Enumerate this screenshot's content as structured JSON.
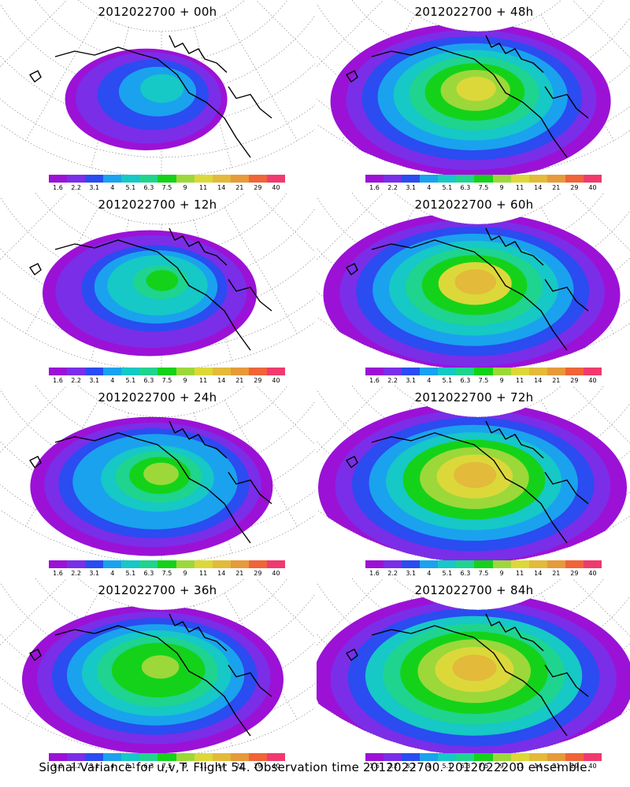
{
  "panels": [
    {
      "title": "2012022700 + 00h",
      "lead_hours": 0,
      "variance_intensity": 0.28
    },
    {
      "title": "2012022700 + 48h",
      "lead_hours": 48,
      "variance_intensity": 0.78
    },
    {
      "title": "2012022700 + 12h",
      "lead_hours": 12,
      "variance_intensity": 0.5
    },
    {
      "title": "2012022700 + 60h",
      "lead_hours": 60,
      "variance_intensity": 0.85
    },
    {
      "title": "2012022700 + 24h",
      "lead_hours": 24,
      "variance_intensity": 0.62
    },
    {
      "title": "2012022700 + 72h",
      "lead_hours": 72,
      "variance_intensity": 0.9
    },
    {
      "title": "2012022700 + 36h",
      "lead_hours": 36,
      "variance_intensity": 0.7
    },
    {
      "title": "2012022700 + 84h",
      "lead_hours": 84,
      "variance_intensity": 0.95
    }
  ],
  "colorbar": {
    "colors": [
      "#9b12d6",
      "#7a2ee8",
      "#2a4cf0",
      "#1aa2ee",
      "#16c8c6",
      "#1fd48f",
      "#14d21a",
      "#9cd83a",
      "#dcd83a",
      "#e3ba3a",
      "#e69a3a",
      "#ef6438",
      "#f03a6e"
    ],
    "ticks": [
      "1.6",
      "2.2",
      "3.1",
      "4",
      "5.1",
      "6.3",
      "7.5",
      "9",
      "11",
      "14",
      "21",
      "29",
      "40"
    ]
  },
  "caption": "Signal Variance for u,v,T. Flight 54. Observation time 2012022700. 2012022200 ensemble."
}
